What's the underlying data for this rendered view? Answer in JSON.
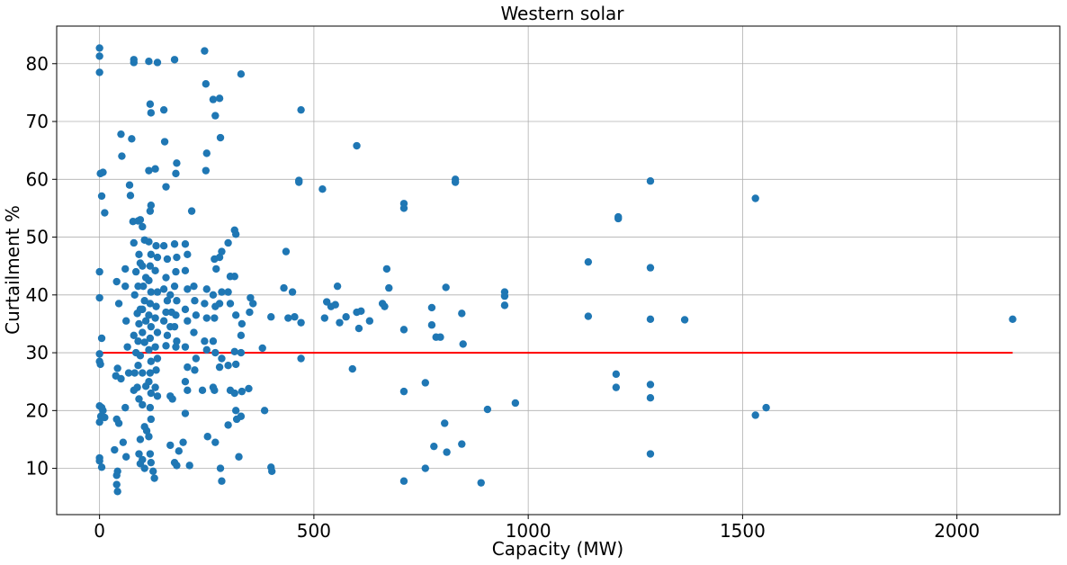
{
  "chart_data": {
    "type": "scatter",
    "title": "Western solar",
    "xlabel": "Capacity (MW)",
    "ylabel": "Curtailment %",
    "xlim": [
      -100,
      2240
    ],
    "ylim": [
      2,
      86.5
    ],
    "xticks": [
      0,
      500,
      1000,
      1500,
      2000
    ],
    "yticks": [
      10,
      20,
      30,
      40,
      50,
      60,
      70,
      80
    ],
    "grid": true,
    "colors": {
      "points": "#1f77b4",
      "reference_line": "#ff0000"
    },
    "reference_line": {
      "y": 30,
      "x_start": 0,
      "x_end": 2130
    },
    "series": [
      {
        "points": [
          [
            0,
            82.7
          ],
          [
            0,
            81.3
          ],
          [
            0,
            78.5
          ],
          [
            2,
            61
          ],
          [
            8,
            61.2
          ],
          [
            5,
            57.1
          ],
          [
            12,
            54.2
          ],
          [
            0,
            44
          ],
          [
            0,
            39.5
          ],
          [
            5,
            32.5
          ],
          [
            0,
            29.8
          ],
          [
            0,
            28.5
          ],
          [
            2,
            28
          ],
          [
            0,
            20.8
          ],
          [
            5,
            20.5
          ],
          [
            8,
            20
          ],
          [
            3,
            19
          ],
          [
            12,
            18.8
          ],
          [
            0,
            18
          ],
          [
            0,
            11.8
          ],
          [
            0,
            11.3
          ],
          [
            5,
            10.2
          ],
          [
            40,
            42.3
          ],
          [
            45,
            38.5
          ],
          [
            42,
            27.3
          ],
          [
            38,
            26
          ],
          [
            40,
            18.5
          ],
          [
            45,
            17.8
          ],
          [
            35,
            13.2
          ],
          [
            42,
            9.5
          ],
          [
            40,
            8.8
          ],
          [
            40,
            7.2
          ],
          [
            42,
            6
          ],
          [
            50,
            67.8
          ],
          [
            52,
            64
          ],
          [
            55,
            14.5
          ],
          [
            50,
            25.5
          ],
          [
            60,
            44.5
          ],
          [
            60,
            41.5
          ],
          [
            62,
            35.5
          ],
          [
            65,
            31
          ],
          [
            68,
            26.5
          ],
          [
            60,
            20.5
          ],
          [
            62,
            12
          ],
          [
            70,
            59
          ],
          [
            72,
            57.2
          ],
          [
            75,
            67
          ],
          [
            80,
            80.2
          ],
          [
            80,
            80.7
          ],
          [
            78,
            52.7
          ],
          [
            80,
            49
          ],
          [
            85,
            44
          ],
          [
            82,
            40
          ],
          [
            88,
            36.8
          ],
          [
            80,
            33
          ],
          [
            85,
            30
          ],
          [
            82,
            26.5
          ],
          [
            80,
            23.5
          ],
          [
            90,
            52.8
          ],
          [
            95,
            53
          ],
          [
            92,
            47
          ],
          [
            95,
            45.5
          ],
          [
            90,
            41.5
          ],
          [
            95,
            37.5
          ],
          [
            92,
            35
          ],
          [
            90,
            32
          ],
          [
            95,
            29.5
          ],
          [
            90,
            27.8
          ],
          [
            88,
            24
          ],
          [
            92,
            22
          ],
          [
            95,
            15
          ],
          [
            92,
            12.5
          ],
          [
            95,
            10.8
          ],
          [
            100,
            51.8
          ],
          [
            105,
            49.5
          ],
          [
            100,
            45
          ],
          [
            108,
            43
          ],
          [
            102,
            41.5
          ],
          [
            105,
            39
          ],
          [
            100,
            37.5
          ],
          [
            108,
            35.5
          ],
          [
            100,
            33.5
          ],
          [
            105,
            31.8
          ],
          [
            100,
            26.5
          ],
          [
            108,
            24.2
          ],
          [
            100,
            21
          ],
          [
            105,
            17.2
          ],
          [
            110,
            16.5
          ],
          [
            100,
            11.5
          ],
          [
            105,
            10
          ],
          [
            115,
            80.4
          ],
          [
            118,
            73
          ],
          [
            120,
            71.5
          ],
          [
            115,
            61.5
          ],
          [
            120,
            55.5
          ],
          [
            118,
            54.5
          ],
          [
            115,
            49.2
          ],
          [
            120,
            47
          ],
          [
            118,
            45
          ],
          [
            115,
            42.5
          ],
          [
            120,
            40.5
          ],
          [
            118,
            38.5
          ],
          [
            115,
            36.5
          ],
          [
            120,
            34.5
          ],
          [
            118,
            32.5
          ],
          [
            115,
            30.5
          ],
          [
            120,
            28.5
          ],
          [
            118,
            26.5
          ],
          [
            115,
            25
          ],
          [
            120,
            23
          ],
          [
            118,
            20.5
          ],
          [
            120,
            18.5
          ],
          [
            115,
            15.5
          ],
          [
            118,
            12.5
          ],
          [
            120,
            11
          ],
          [
            125,
            9.5
          ],
          [
            128,
            8.3
          ],
          [
            135,
            80.2
          ],
          [
            130,
            61.8
          ],
          [
            132,
            48.5
          ],
          [
            135,
            46.5
          ],
          [
            130,
            44.2
          ],
          [
            135,
            40.5
          ],
          [
            132,
            38
          ],
          [
            130,
            36
          ],
          [
            135,
            33.5
          ],
          [
            130,
            31
          ],
          [
            135,
            29
          ],
          [
            132,
            27
          ],
          [
            130,
            24
          ],
          [
            135,
            22.5
          ],
          [
            150,
            72
          ],
          [
            152,
            66.5
          ],
          [
            155,
            58.7
          ],
          [
            150,
            48.5
          ],
          [
            158,
            46.2
          ],
          [
            155,
            43
          ],
          [
            150,
            41
          ],
          [
            158,
            39
          ],
          [
            155,
            37
          ],
          [
            150,
            35.5
          ],
          [
            158,
            33
          ],
          [
            155,
            31.2
          ],
          [
            165,
            40
          ],
          [
            168,
            37
          ],
          [
            165,
            34.5
          ],
          [
            165,
            22.5
          ],
          [
            170,
            22
          ],
          [
            165,
            14
          ],
          [
            175,
            80.7
          ],
          [
            180,
            62.8
          ],
          [
            178,
            61
          ],
          [
            175,
            48.8
          ],
          [
            180,
            46.5
          ],
          [
            178,
            44
          ],
          [
            175,
            41.5
          ],
          [
            180,
            39
          ],
          [
            178,
            36.5
          ],
          [
            175,
            34.5
          ],
          [
            180,
            32
          ],
          [
            178,
            31
          ],
          [
            175,
            11
          ],
          [
            180,
            10.5
          ],
          [
            185,
            13
          ],
          [
            200,
            48.8
          ],
          [
            205,
            47
          ],
          [
            200,
            44.2
          ],
          [
            205,
            41
          ],
          [
            200,
            37.5
          ],
          [
            205,
            35.5
          ],
          [
            200,
            31
          ],
          [
            205,
            27.5
          ],
          [
            200,
            25
          ],
          [
            205,
            23.5
          ],
          [
            200,
            19.5
          ],
          [
            195,
            14.5
          ],
          [
            210,
            10.5
          ],
          [
            215,
            54.5
          ],
          [
            220,
            41.5
          ],
          [
            222,
            39
          ],
          [
            225,
            36.5
          ],
          [
            220,
            33.5
          ],
          [
            225,
            29
          ],
          [
            222,
            27
          ],
          [
            245,
            82.2
          ],
          [
            248,
            76.5
          ],
          [
            250,
            64.5
          ],
          [
            248,
            61.5
          ],
          [
            250,
            41
          ],
          [
            245,
            38.5
          ],
          [
            250,
            36
          ],
          [
            245,
            32
          ],
          [
            250,
            30.5
          ],
          [
            240,
            23.5
          ],
          [
            252,
            15.5
          ],
          [
            265,
            73.8
          ],
          [
            270,
            71
          ],
          [
            268,
            46.2
          ],
          [
            272,
            44.5
          ],
          [
            265,
            40
          ],
          [
            270,
            38
          ],
          [
            268,
            36
          ],
          [
            265,
            32
          ],
          [
            270,
            30
          ],
          [
            265,
            24
          ],
          [
            268,
            23.5
          ],
          [
            270,
            14.5
          ],
          [
            280,
            74
          ],
          [
            282,
            67.2
          ],
          [
            285,
            47.5
          ],
          [
            280,
            46.5
          ],
          [
            285,
            40.5
          ],
          [
            280,
            38.5
          ],
          [
            285,
            29
          ],
          [
            280,
            27.5
          ],
          [
            282,
            10
          ],
          [
            285,
            7.8
          ],
          [
            300,
            49
          ],
          [
            305,
            43.2
          ],
          [
            300,
            40.5
          ],
          [
            305,
            38.5
          ],
          [
            300,
            27.8
          ],
          [
            305,
            23.5
          ],
          [
            300,
            17.5
          ],
          [
            315,
            51.2
          ],
          [
            318,
            50.5
          ],
          [
            315,
            43.2
          ],
          [
            318,
            36.5
          ],
          [
            315,
            30.2
          ],
          [
            318,
            28
          ],
          [
            315,
            23
          ],
          [
            318,
            20
          ],
          [
            320,
            18.5
          ],
          [
            325,
            12
          ],
          [
            330,
            78.2
          ],
          [
            332,
            35
          ],
          [
            330,
            33
          ],
          [
            330,
            30
          ],
          [
            332,
            23.3
          ],
          [
            330,
            19
          ],
          [
            352,
            39.5
          ],
          [
            358,
            38.5
          ],
          [
            350,
            37
          ],
          [
            348,
            23.8
          ],
          [
            380,
            30.8
          ],
          [
            385,
            20
          ],
          [
            400,
            36.2
          ],
          [
            400,
            10.2
          ],
          [
            402,
            9.5
          ],
          [
            430,
            41.2
          ],
          [
            435,
            47.5
          ],
          [
            440,
            36
          ],
          [
            450,
            40.5
          ],
          [
            455,
            36.2
          ],
          [
            470,
            72
          ],
          [
            465,
            59.8
          ],
          [
            465,
            59.5
          ],
          [
            470,
            35.2
          ],
          [
            470,
            29
          ],
          [
            520,
            58.3
          ],
          [
            525,
            36
          ],
          [
            530,
            38.8
          ],
          [
            540,
            38
          ],
          [
            550,
            38.3
          ],
          [
            555,
            41.5
          ],
          [
            560,
            35.2
          ],
          [
            575,
            36.2
          ],
          [
            590,
            27.2
          ],
          [
            600,
            65.8
          ],
          [
            600,
            37
          ],
          [
            605,
            34.2
          ],
          [
            610,
            37.2
          ],
          [
            630,
            35.5
          ],
          [
            660,
            38.5
          ],
          [
            665,
            38
          ],
          [
            670,
            44.5
          ],
          [
            675,
            41.2
          ],
          [
            710,
            55.8
          ],
          [
            710,
            55
          ],
          [
            710,
            34
          ],
          [
            710,
            23.3
          ],
          [
            710,
            7.8
          ],
          [
            760,
            24.8
          ],
          [
            760,
            10
          ],
          [
            775,
            37.8
          ],
          [
            775,
            34.8
          ],
          [
            780,
            13.8
          ],
          [
            785,
            32.7
          ],
          [
            795,
            32.7
          ],
          [
            808,
            41.3
          ],
          [
            805,
            17.8
          ],
          [
            810,
            12.8
          ],
          [
            830,
            60
          ],
          [
            830,
            59.5
          ],
          [
            845,
            36.8
          ],
          [
            848,
            31.5
          ],
          [
            845,
            14.2
          ],
          [
            890,
            7.5
          ],
          [
            905,
            20.2
          ],
          [
            970,
            21.3
          ],
          [
            945,
            40.5
          ],
          [
            945,
            39.8
          ],
          [
            945,
            38.2
          ],
          [
            1140,
            45.7
          ],
          [
            1140,
            36.3
          ],
          [
            1205,
            26.3
          ],
          [
            1205,
            24
          ],
          [
            1210,
            53.5
          ],
          [
            1210,
            53.2
          ],
          [
            1285,
            59.7
          ],
          [
            1285,
            44.7
          ],
          [
            1285,
            35.8
          ],
          [
            1285,
            24.5
          ],
          [
            1285,
            22.2
          ],
          [
            1285,
            12.5
          ],
          [
            1365,
            35.7
          ],
          [
            1530,
            56.7
          ],
          [
            1530,
            19.2
          ],
          [
            1555,
            20.5
          ],
          [
            2130,
            35.8
          ]
        ]
      }
    ]
  }
}
